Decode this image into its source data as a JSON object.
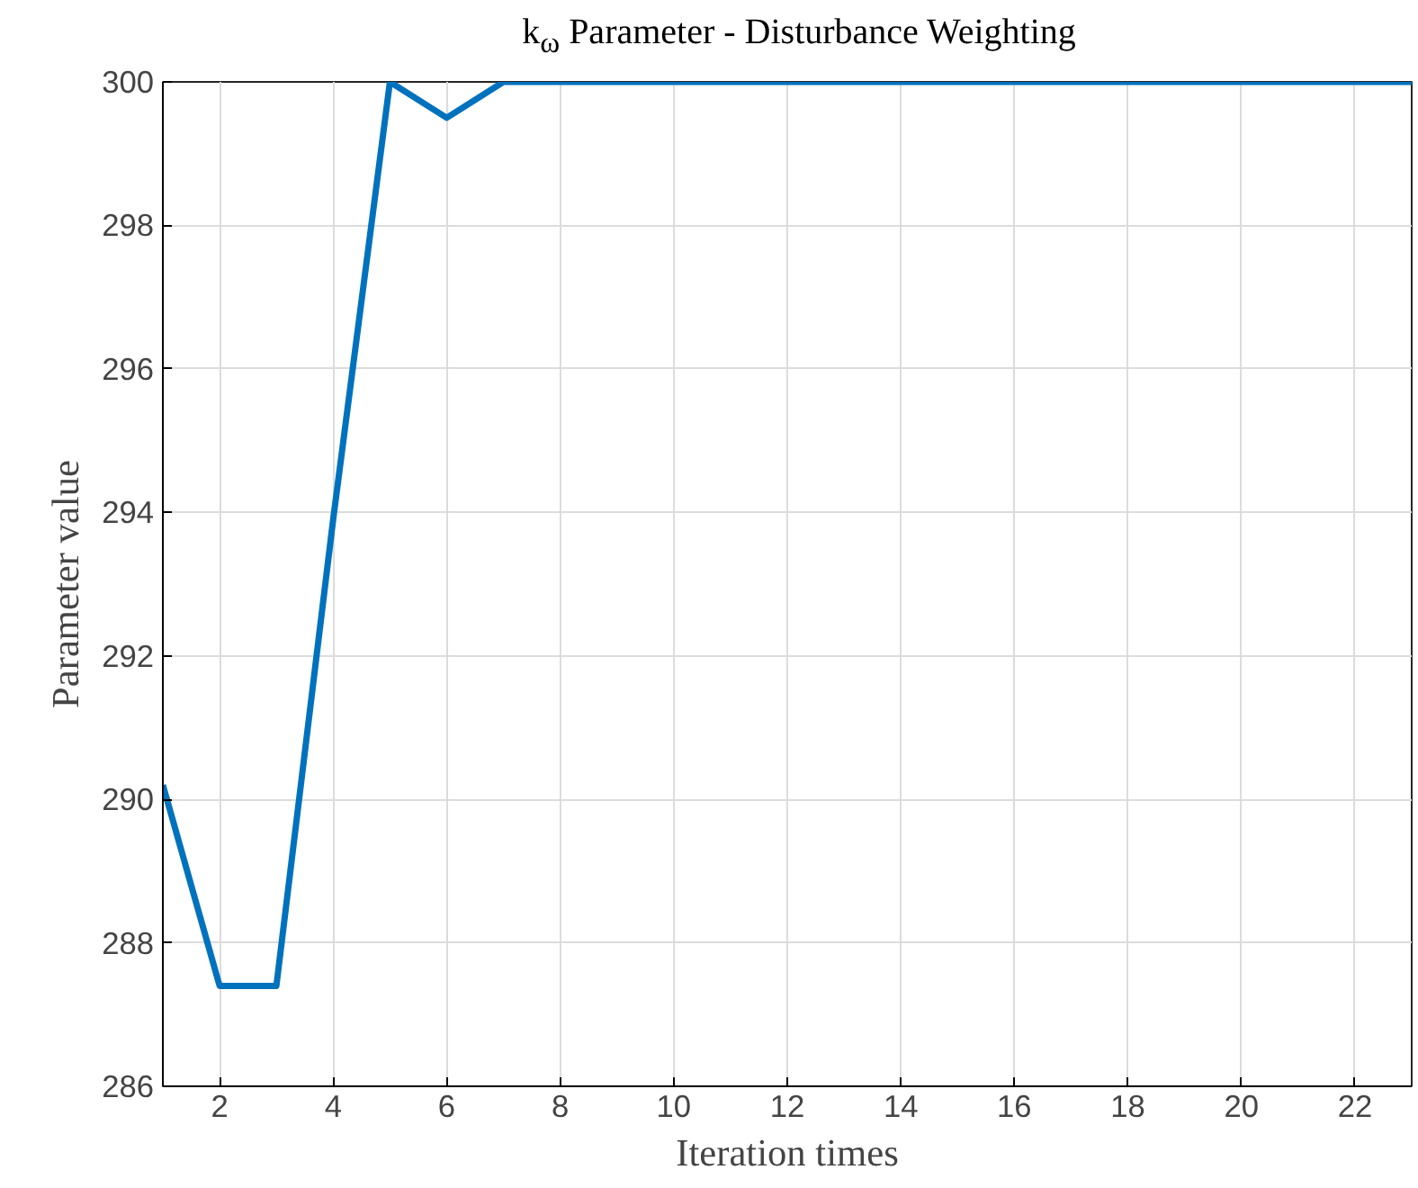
{
  "chart_data": {
    "type": "line",
    "title": "k$_{ω}$ Parameter - Disturbance Weighting",
    "xlabel": "Iteration times",
    "ylabel": "Parameter value",
    "x": [
      1,
      2,
      3,
      4,
      5,
      6,
      7,
      8,
      9,
      10,
      11,
      12,
      13,
      14,
      15,
      16,
      17,
      18,
      19,
      20,
      21,
      22,
      23
    ],
    "series": [
      {
        "color": "#0072bd",
        "values": [
          290.2,
          287.4,
          287.4,
          293.9,
          300,
          299.5,
          300,
          300,
          300,
          300,
          300,
          300,
          300,
          300,
          300,
          300,
          300,
          300,
          300,
          300,
          300,
          300,
          300
        ]
      }
    ],
    "xlim": [
      1,
      23
    ],
    "xticks": [
      2,
      4,
      6,
      8,
      10,
      12,
      14,
      16,
      18,
      20,
      22
    ],
    "ylim": [
      286,
      300
    ],
    "yticks": [
      286,
      288,
      290,
      292,
      294,
      296,
      298,
      300
    ],
    "grid": true,
    "marker": "none",
    "line_style": "solid"
  }
}
